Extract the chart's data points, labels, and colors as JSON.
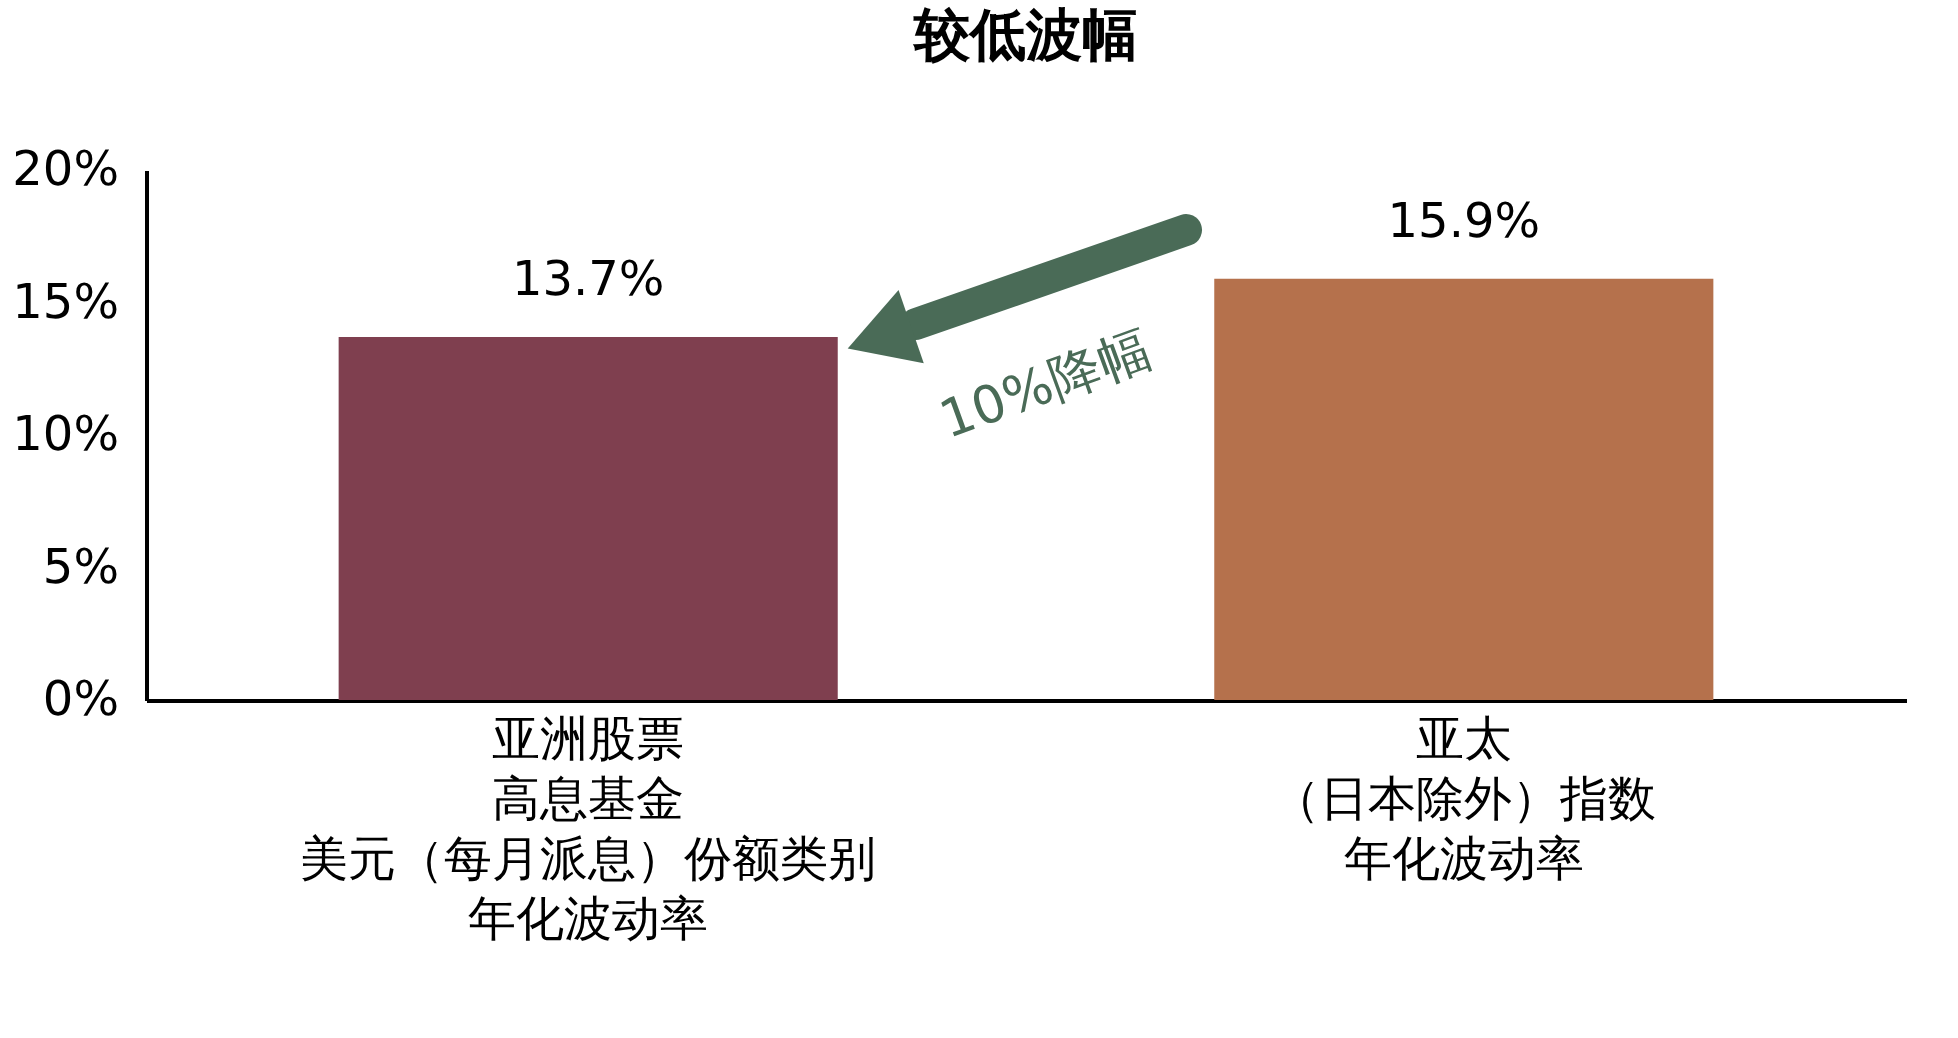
{
  "chart_data": {
    "type": "bar",
    "title": "较低波幅",
    "categories": [
      "亚洲股票高息基金美元（每月派息）份额类别年化波动率",
      "亚太（日本除外）指数年化波动率"
    ],
    "values": [
      13.7,
      15.9
    ],
    "colors": [
      "#7f3f4f",
      "#b5714c"
    ],
    "value_labels": [
      "13.7%",
      "15.9%"
    ],
    "ylim": [
      0,
      20
    ],
    "yticks": [
      {
        "value": 0,
        "label": "0%"
      },
      {
        "value": 5,
        "label": "5%"
      },
      {
        "value": 10,
        "label": "10%"
      },
      {
        "value": 15,
        "label": "15%"
      },
      {
        "value": 20,
        "label": "20%"
      }
    ],
    "annotations": [
      "10%降幅"
    ],
    "grid": false,
    "legend": false
  }
}
